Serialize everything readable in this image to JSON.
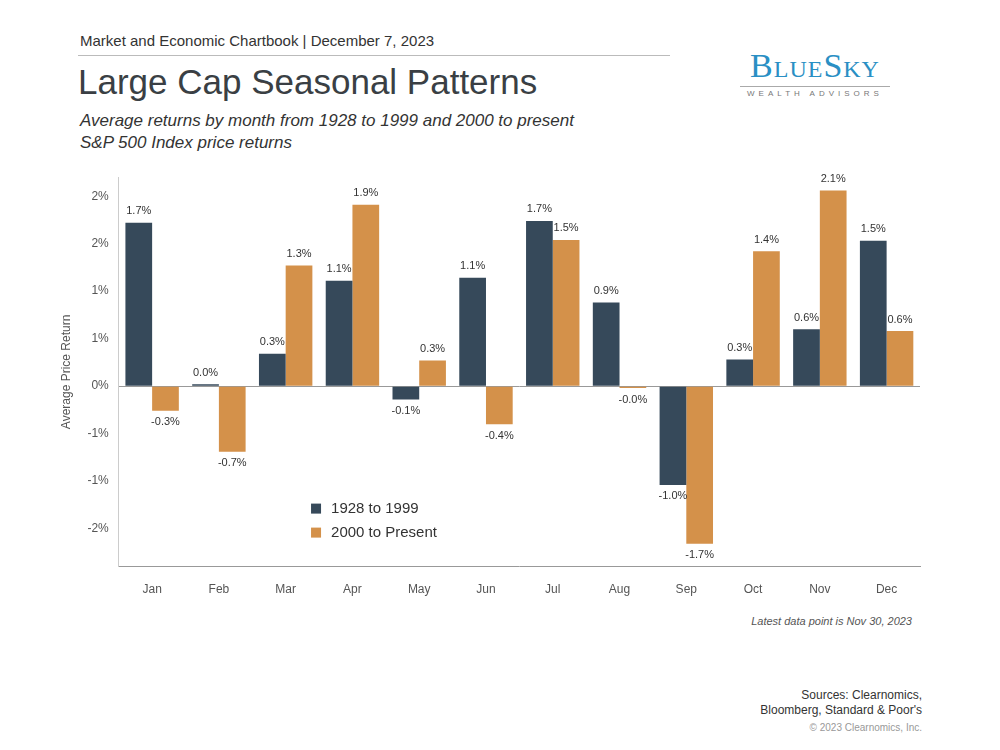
{
  "header": "Market and Economic Chartbook | December 7, 2023",
  "logo": {
    "name": "BlueSky",
    "tagline": "WEALTH ADVISORS"
  },
  "chart_data": {
    "type": "bar",
    "title": "Large Cap Seasonal Patterns",
    "subtitle": [
      "Average returns by month from 1928 to 1999 and 2000 to present",
      "S&P 500 Index price returns"
    ],
    "y_label": "Average Price Return",
    "categories": [
      "Jan",
      "Feb",
      "Mar",
      "Apr",
      "May",
      "Jun",
      "Jul",
      "Aug",
      "Sep",
      "Oct",
      "Nov",
      "Dec"
    ],
    "series": [
      {
        "name": "1928 to 1999",
        "color": "#36495a",
        "values": [
          1.72,
          0.02,
          0.34,
          1.11,
          -0.14,
          1.14,
          1.74,
          0.88,
          -1.04,
          0.28,
          0.6,
          1.53
        ],
        "value_labels": [
          "1.7%",
          "0.0%",
          "0.3%",
          "1.1%",
          "-0.1%",
          "1.1%",
          "1.7%",
          "0.9%",
          "-1.0%",
          "0.3%",
          "0.6%",
          "1.5%"
        ]
      },
      {
        "name": "2000 to Present",
        "color": "#d4914a",
        "values": [
          -0.26,
          -0.69,
          1.27,
          1.91,
          0.27,
          -0.4,
          1.54,
          -0.02,
          -1.66,
          1.42,
          2.06,
          0.58
        ],
        "value_labels": [
          "-0.3%",
          "-0.7%",
          "1.3%",
          "1.9%",
          "0.3%",
          "-0.4%",
          "1.5%",
          "-0.0%",
          "-1.7%",
          "1.4%",
          "2.1%",
          "0.6%"
        ]
      }
    ],
    "ylim": [
      -1.9,
      2.2
    ],
    "yticks": [
      {
        "value": 2,
        "label": "2%"
      },
      {
        "value": 1.5,
        "label": "2%"
      },
      {
        "value": 1,
        "label": "1%"
      },
      {
        "value": 0.5,
        "label": "1%"
      },
      {
        "value": 0,
        "label": "0%"
      },
      {
        "value": -0.5,
        "label": "-1%"
      },
      {
        "value": -1,
        "label": "-1%"
      },
      {
        "value": -1.5,
        "label": "-2%"
      }
    ],
    "grid": false,
    "legend": "lower left",
    "data_labels": true
  },
  "note": "Latest data point is Nov 30, 2023",
  "sources": [
    "Sources: Clearnomics,",
    "Bloomberg, Standard & Poor's"
  ],
  "copyright": "© 2023 Clearnomics, Inc."
}
